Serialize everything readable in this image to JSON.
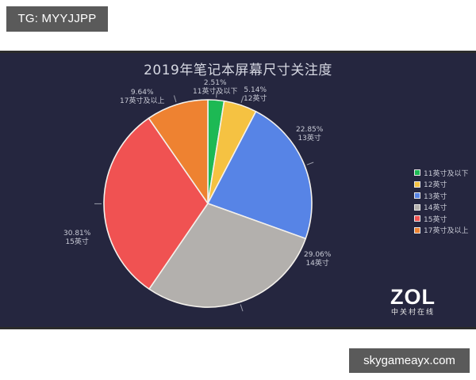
{
  "watermarks": {
    "top_left": "TG: MYYJJPP",
    "bottom_right": "skygameayx.com"
  },
  "chart": {
    "title": "2019年笔记本屏幕尺寸关注度",
    "background": "#25263f",
    "logo": {
      "main": "ZOL",
      "sub": "中关村在线"
    }
  },
  "chart_data": {
    "type": "pie",
    "title": "2019年笔记本屏幕尺寸关注度",
    "categories": [
      "11英寸及以下",
      "12英寸",
      "13英寸",
      "14英寸",
      "15英寸",
      "17英寸及以上"
    ],
    "values": [
      2.51,
      5.14,
      22.85,
      29.06,
      30.81,
      9.64
    ],
    "unit": "%",
    "labels": [
      {
        "pct": "2.51%",
        "name": "11英寸及以下"
      },
      {
        "pct": "5.14%",
        "name": "12英寸"
      },
      {
        "pct": "22.85%",
        "name": "13英寸"
      },
      {
        "pct": "29.06%",
        "name": "14英寸"
      },
      {
        "pct": "30.81%",
        "name": "15英寸"
      },
      {
        "pct": "9.64%",
        "name": "17英寸及以上"
      }
    ],
    "colors": [
      "#1db954",
      "#f5c242",
      "#5784e6",
      "#b3b0ad",
      "#f05252",
      "#ee8231"
    ],
    "start_angle": "12 o'clock",
    "direction": "clockwise",
    "legend_position": "right",
    "legend": [
      "11英寸及以下",
      "12英寸",
      "13英寸",
      "14英寸",
      "15英寸",
      "17英寸及以上"
    ]
  }
}
